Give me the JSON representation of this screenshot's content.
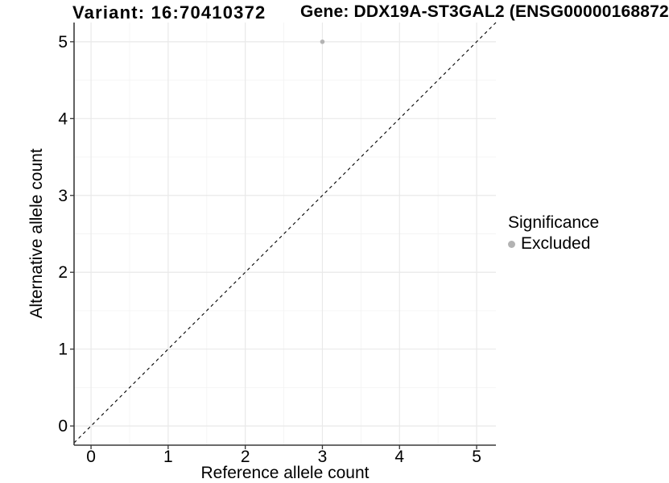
{
  "header": {
    "variant_title": "Variant: 16:70410372",
    "gene_title": "Gene: DDX19A-ST3GAL2 (ENSG00000168872"
  },
  "legend": {
    "title": "Significance",
    "position": "right",
    "items": [
      {
        "label": "Excluded",
        "color": "#b3b3b3"
      }
    ]
  },
  "colors": {
    "point": "#b3b3b3",
    "grid_major": "#e9e9e9",
    "grid_minor": "#f4f4f4",
    "axis_line": "#3a3a3a",
    "tick_mark": "#333333",
    "dashed_line": "#000000",
    "text": "#000000",
    "background": "#ffffff"
  },
  "chart_data": {
    "type": "scatter",
    "title": "Variant: 16:70410372   Gene: DDX19A-ST3GAL2 (ENSG00000168872",
    "xlabel": "Reference allele count",
    "ylabel": "Alternative allele count",
    "x_ticks": [
      0,
      1,
      2,
      3,
      4,
      5
    ],
    "y_ticks": [
      0,
      1,
      2,
      3,
      4,
      5
    ],
    "xlim": [
      -0.22,
      5.25
    ],
    "ylim": [
      -0.25,
      5.25
    ],
    "grid": "major+minor",
    "legend_position": "right",
    "reference_line": {
      "type": "identity y=x",
      "style": "dashed",
      "color": "#000000"
    },
    "series": [
      {
        "name": "Excluded",
        "color": "#b3b3b3",
        "points": [
          {
            "x": 3,
            "y": 5
          }
        ]
      }
    ]
  }
}
